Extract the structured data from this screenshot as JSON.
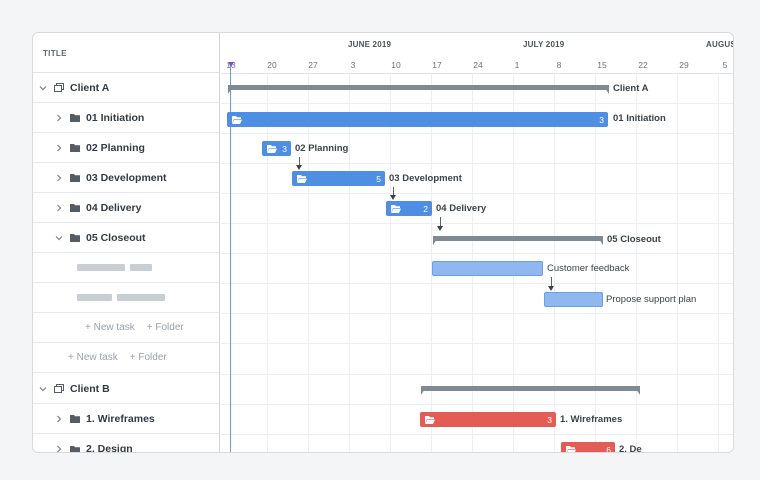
{
  "left_header": "TITLE",
  "rows": [
    {
      "label": "Client A",
      "expanded": true
    },
    {
      "label": "01 Initiation"
    },
    {
      "label": "02 Planning"
    },
    {
      "label": "03 Development"
    },
    {
      "label": "04 Delivery"
    },
    {
      "label": "05 Closeout",
      "expanded": true
    },
    {
      "label": "1. Wireframes"
    },
    {
      "label": "2. Design"
    },
    {
      "label": "Client B",
      "expanded": true
    }
  ],
  "add_task": "+ New task",
  "add_folder": "+ Folder",
  "months": [
    "JUNE 2019",
    "JULY 2019",
    "AUGUS"
  ],
  "days": [
    "13",
    "20",
    "27",
    "3",
    "10",
    "17",
    "24",
    "1",
    "8",
    "15",
    "22",
    "29",
    "5"
  ],
  "bars": {
    "client_a": "Client A",
    "initiation_count": "3",
    "initiation": "01 Initiation",
    "planning_count": "3",
    "planning": "02 Planning",
    "development_count": "5",
    "development": "03 Development",
    "delivery_count": "2",
    "delivery": "04 Delivery",
    "closeout": "05 Closeout",
    "customer_feedback": "Customer feedback",
    "support_plan": "Propose support plan",
    "wireframes_count": "3",
    "wireframes": "1. Wireframes",
    "design_count": "6",
    "design": "2. De"
  },
  "colors": {
    "task_blue": "#4f8fe3",
    "task_light": "#8fb7f0",
    "task_red": "#e45c54",
    "summary": "#7f8a93",
    "today": "#5aa9d6"
  }
}
